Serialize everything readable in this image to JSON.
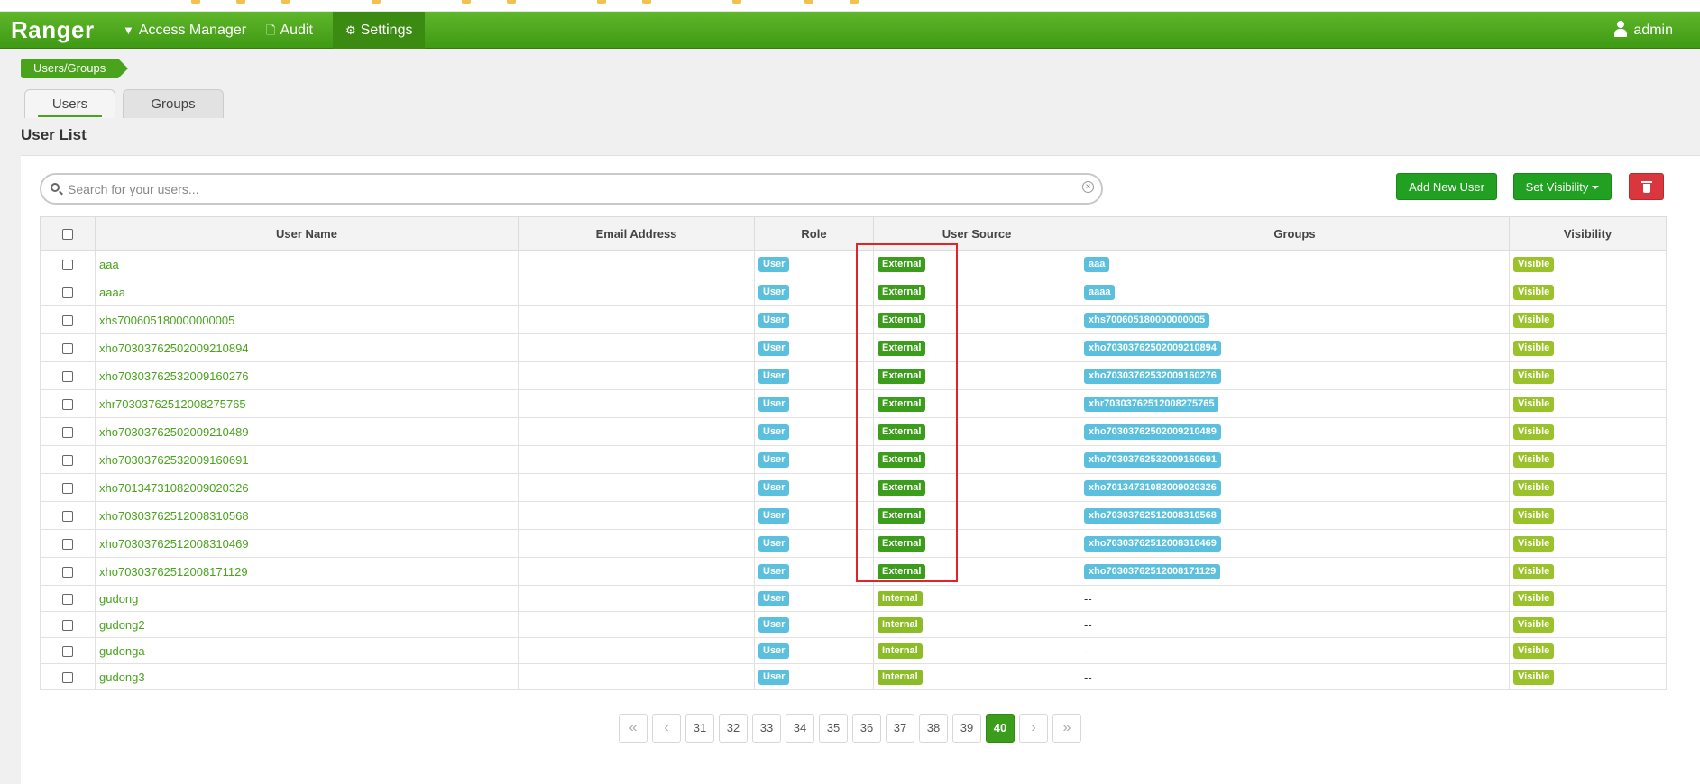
{
  "brand": "Ranger",
  "nav": {
    "access_manager": "Access Manager",
    "audit": "Audit",
    "settings": "Settings",
    "user": "admin"
  },
  "breadcrumb": "Users/Groups",
  "tabs": {
    "users": "Users",
    "groups": "Groups"
  },
  "page_title": "User List",
  "search": {
    "placeholder": "Search for your users...",
    "value": ""
  },
  "buttons": {
    "add_user": "Add New User",
    "set_visibility": "Set Visibility"
  },
  "table": {
    "headers": [
      "User Name",
      "Email Address",
      "Role",
      "User Source",
      "Groups",
      "Visibility"
    ],
    "rows": [
      {
        "name": "aaa",
        "email": "",
        "role": "User",
        "source": "External",
        "groups": "aaa",
        "visibility": "Visible"
      },
      {
        "name": "aaaa",
        "email": "",
        "role": "User",
        "source": "External",
        "groups": "aaaa",
        "visibility": "Visible"
      },
      {
        "name": "xhs700605180000000005",
        "email": "",
        "role": "User",
        "source": "External",
        "groups": "xhs700605180000000005",
        "visibility": "Visible"
      },
      {
        "name": "xho70303762502009210894",
        "email": "",
        "role": "User",
        "source": "External",
        "groups": "xho70303762502009210894",
        "visibility": "Visible"
      },
      {
        "name": "xho70303762532009160276",
        "email": "",
        "role": "User",
        "source": "External",
        "groups": "xho70303762532009160276",
        "visibility": "Visible"
      },
      {
        "name": "xhr70303762512008275765",
        "email": "",
        "role": "User",
        "source": "External",
        "groups": "xhr70303762512008275765",
        "visibility": "Visible"
      },
      {
        "name": "xho70303762502009210489",
        "email": "",
        "role": "User",
        "source": "External",
        "groups": "xho70303762502009210489",
        "visibility": "Visible"
      },
      {
        "name": "xho70303762532009160691",
        "email": "",
        "role": "User",
        "source": "External",
        "groups": "xho70303762532009160691",
        "visibility": "Visible"
      },
      {
        "name": "xho70134731082009020326",
        "email": "",
        "role": "User",
        "source": "External",
        "groups": "xho70134731082009020326",
        "visibility": "Visible"
      },
      {
        "name": "xho70303762512008310568",
        "email": "",
        "role": "User",
        "source": "External",
        "groups": "xho70303762512008310568",
        "visibility": "Visible"
      },
      {
        "name": "xho70303762512008310469",
        "email": "",
        "role": "User",
        "source": "External",
        "groups": "xho70303762512008310469",
        "visibility": "Visible"
      },
      {
        "name": "xho70303762512008171129",
        "email": "",
        "role": "User",
        "source": "External",
        "groups": "xho70303762512008171129",
        "visibility": "Visible"
      },
      {
        "name": "gudong",
        "email": "",
        "role": "User",
        "source": "Internal",
        "groups": "--",
        "visibility": "Visible"
      },
      {
        "name": "gudong2",
        "email": "",
        "role": "User",
        "source": "Internal",
        "groups": "--",
        "visibility": "Visible"
      },
      {
        "name": "gudonga",
        "email": "",
        "role": "User",
        "source": "Internal",
        "groups": "--",
        "visibility": "Visible"
      },
      {
        "name": "gudong3",
        "email": "",
        "role": "User",
        "source": "Internal",
        "groups": "--",
        "visibility": "Visible"
      }
    ]
  },
  "pagination": {
    "pages": [
      "31",
      "32",
      "33",
      "34",
      "35",
      "36",
      "37",
      "38",
      "39",
      "40"
    ],
    "current": "40",
    "first": "«",
    "prev": "‹",
    "next": "›",
    "last": "»"
  },
  "colors": {
    "navbar": "#4aa31d",
    "external": "#3c9c1c",
    "internal": "#8cbd28",
    "role": "#5bc0de",
    "visible": "#9cc22b",
    "highlight": "#e0242c"
  }
}
